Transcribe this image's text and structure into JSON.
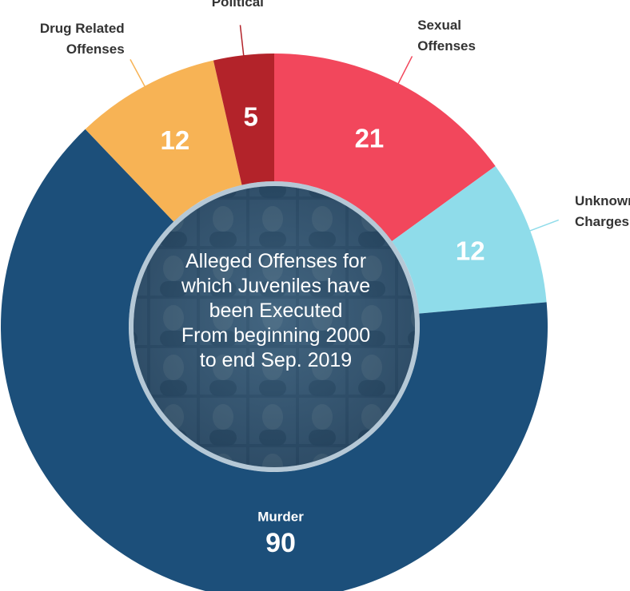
{
  "chart_data": {
    "type": "pie",
    "style": "donut",
    "center_text": [
      "Alleged Offenses for",
      "which Juveniles have",
      "been Executed",
      "From beginning 2000",
      "to end Sep. 2019"
    ],
    "slices": [
      {
        "name": "Sexual Offenses",
        "label_lines": [
          "Sexual",
          "Offenses"
        ],
        "value": 21,
        "color": "#f2475c"
      },
      {
        "name": "Unknown Charges",
        "label_lines": [
          "Unknown",
          "Charges"
        ],
        "value": 12,
        "color": "#8fdcea"
      },
      {
        "name": "Murder",
        "label_lines": [
          "Murder"
        ],
        "value": 90,
        "color": "#1c4f7a"
      },
      {
        "name": "Drug Related Offenses",
        "label_lines": [
          "Drug Related",
          "Offenses"
        ],
        "value": 12,
        "color": "#f7b355"
      },
      {
        "name": "Political",
        "label_lines": [
          "Political"
        ],
        "value": 5,
        "color": "#b3232a"
      }
    ],
    "legend": "none"
  }
}
